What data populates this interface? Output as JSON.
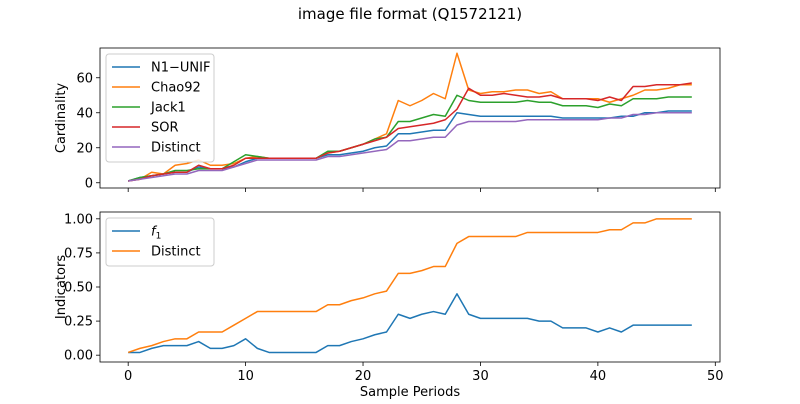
{
  "figure": {
    "title": "image file format (Q1572121)"
  },
  "chart_data": [
    {
      "type": "line",
      "title": "",
      "xlabel": "",
      "ylabel": "Cardinality",
      "xlim": [
        -2.4,
        50.4
      ],
      "ylim": [
        -3,
        77
      ],
      "xticks": [
        0,
        10,
        20,
        30,
        40,
        50
      ],
      "yticks": [
        0,
        20,
        40,
        60
      ],
      "xtick_labels_visible": false,
      "legend": "top-left",
      "x": [
        0,
        1,
        2,
        3,
        4,
        5,
        6,
        7,
        8,
        9,
        10,
        11,
        12,
        13,
        14,
        15,
        16,
        17,
        18,
        19,
        20,
        21,
        22,
        23,
        24,
        25,
        26,
        27,
        28,
        29,
        30,
        31,
        32,
        33,
        34,
        35,
        36,
        37,
        38,
        39,
        40,
        41,
        42,
        43,
        44,
        45,
        46,
        47,
        48
      ],
      "series": [
        {
          "name": "N1−UNIF",
          "color": "#1f77b4",
          "values": [
            1,
            3,
            4,
            5,
            6,
            6,
            9,
            8,
            8,
            9,
            12,
            14,
            14,
            14,
            14,
            14,
            14,
            16,
            16,
            17,
            18,
            20,
            21,
            28,
            28,
            29,
            30,
            30,
            40,
            39,
            38,
            38,
            38,
            38,
            38,
            38,
            38,
            37,
            37,
            37,
            37,
            37,
            38,
            38,
            40,
            40,
            41,
            41,
            41
          ]
        },
        {
          "name": "Chao92",
          "color": "#ff7f0e",
          "values": [
            1,
            2,
            6,
            5,
            10,
            11,
            13,
            10,
            10,
            11,
            14,
            15,
            14,
            14,
            14,
            14,
            14,
            17,
            18,
            20,
            22,
            25,
            28,
            47,
            44,
            47,
            51,
            48,
            74,
            53,
            51,
            52,
            52,
            53,
            53,
            51,
            52,
            48,
            48,
            48,
            48,
            46,
            48,
            50,
            53,
            53,
            54,
            56,
            56
          ]
        },
        {
          "name": "Jack1",
          "color": "#2ca02c",
          "values": [
            1,
            3,
            4,
            5,
            7,
            7,
            8,
            8,
            8,
            12,
            16,
            15,
            14,
            14,
            14,
            14,
            14,
            18,
            18,
            20,
            22,
            25,
            26,
            35,
            35,
            37,
            39,
            38,
            50,
            47,
            46,
            46,
            46,
            46,
            47,
            46,
            46,
            44,
            44,
            44,
            43,
            45,
            44,
            48,
            48,
            48,
            49,
            49,
            49
          ]
        },
        {
          "name": "SOR",
          "color": "#d62728",
          "values": [
            1,
            2,
            4,
            5,
            6,
            6,
            10,
            8,
            8,
            10,
            14,
            14,
            14,
            14,
            14,
            14,
            14,
            17,
            18,
            20,
            22,
            24,
            26,
            31,
            32,
            33,
            34,
            36,
            42,
            54,
            50,
            50,
            51,
            50,
            49,
            49,
            50,
            48,
            48,
            48,
            47,
            49,
            47,
            55,
            55,
            56,
            56,
            56,
            57
          ]
        },
        {
          "name": "Distinct",
          "color": "#9467bd",
          "values": [
            1,
            2,
            3,
            4,
            5,
            5,
            7,
            7,
            7,
            9,
            11,
            13,
            13,
            13,
            13,
            13,
            13,
            15,
            15,
            16,
            17,
            18,
            19,
            24,
            24,
            25,
            26,
            26,
            33,
            35,
            35,
            35,
            35,
            35,
            36,
            36,
            36,
            36,
            36,
            36,
            36,
            37,
            37,
            39,
            39,
            40,
            40,
            40,
            40
          ]
        }
      ]
    },
    {
      "type": "line",
      "title": "",
      "xlabel": "Sample Periods",
      "ylabel": "Indicators",
      "xlim": [
        -2.4,
        50.4
      ],
      "ylim": [
        -0.05,
        1.05
      ],
      "xticks": [
        0,
        10,
        20,
        30,
        40,
        50
      ],
      "yticks": [
        0.0,
        0.25,
        0.5,
        0.75,
        1.0
      ],
      "ytick_labels": [
        "0.00",
        "0.25",
        "0.50",
        "0.75",
        "1.00"
      ],
      "xtick_labels_visible": true,
      "legend": "top-left",
      "x": [
        0,
        1,
        2,
        3,
        4,
        5,
        6,
        7,
        8,
        9,
        10,
        11,
        12,
        13,
        14,
        15,
        16,
        17,
        18,
        19,
        20,
        21,
        22,
        23,
        24,
        25,
        26,
        27,
        28,
        29,
        30,
        31,
        32,
        33,
        34,
        35,
        36,
        37,
        38,
        39,
        40,
        41,
        42,
        43,
        44,
        45,
        46,
        47,
        48
      ],
      "series": [
        {
          "name": "f1",
          "color": "#1f77b4",
          "values": [
            0.02,
            0.02,
            0.05,
            0.07,
            0.07,
            0.07,
            0.1,
            0.05,
            0.05,
            0.07,
            0.12,
            0.05,
            0.02,
            0.02,
            0.02,
            0.02,
            0.02,
            0.07,
            0.07,
            0.1,
            0.12,
            0.15,
            0.17,
            0.3,
            0.27,
            0.3,
            0.32,
            0.3,
            0.45,
            0.3,
            0.27,
            0.27,
            0.27,
            0.27,
            0.27,
            0.25,
            0.25,
            0.2,
            0.2,
            0.2,
            0.17,
            0.2,
            0.17,
            0.22,
            0.22,
            0.22,
            0.22,
            0.22,
            0.22
          ]
        },
        {
          "name": "Distinct",
          "color": "#ff7f0e",
          "values": [
            0.02,
            0.05,
            0.07,
            0.1,
            0.12,
            0.12,
            0.17,
            0.17,
            0.17,
            0.22,
            0.27,
            0.32,
            0.32,
            0.32,
            0.32,
            0.32,
            0.32,
            0.37,
            0.37,
            0.4,
            0.42,
            0.45,
            0.47,
            0.6,
            0.6,
            0.62,
            0.65,
            0.65,
            0.82,
            0.87,
            0.87,
            0.87,
            0.87,
            0.87,
            0.9,
            0.9,
            0.9,
            0.9,
            0.9,
            0.9,
            0.9,
            0.92,
            0.92,
            0.97,
            0.97,
            1.0,
            1.0,
            1.0,
            1.0
          ]
        }
      ]
    }
  ]
}
